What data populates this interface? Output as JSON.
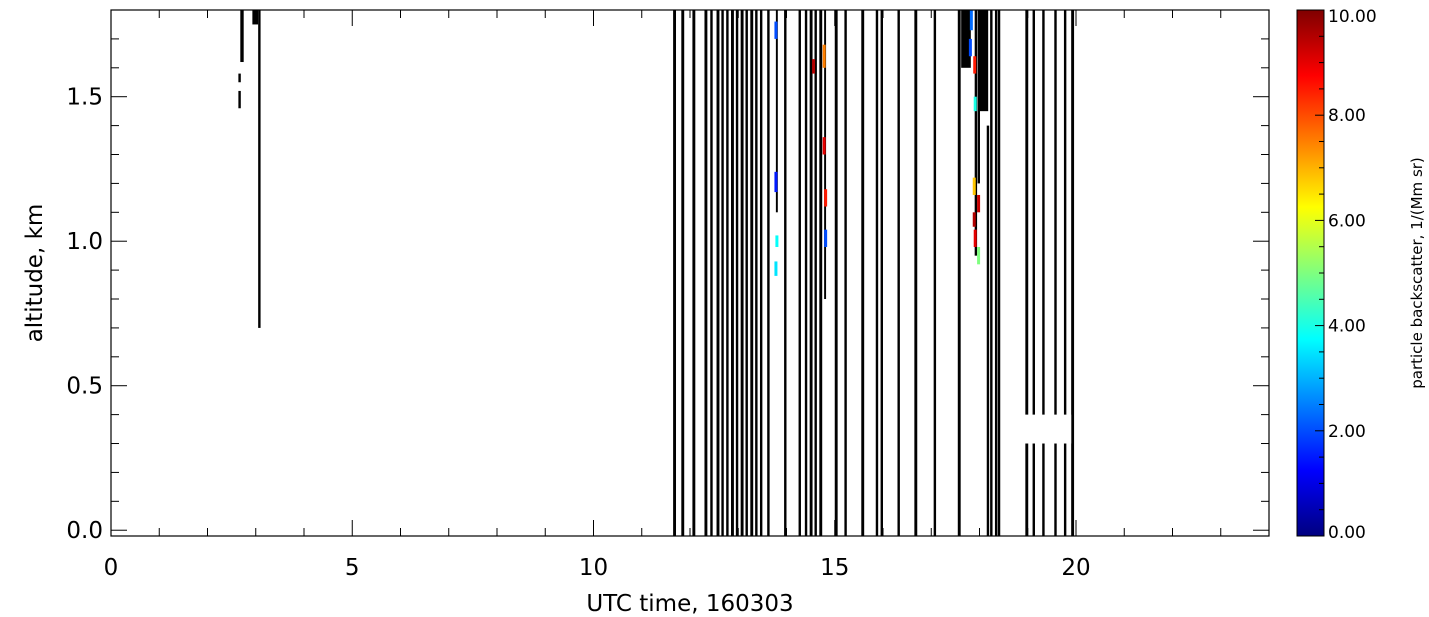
{
  "chart_data": {
    "type": "heatmap",
    "xlabel": "UTC time, 160303",
    "ylabel": "altitude, km",
    "xlim": [
      0,
      24
    ],
    "ylim": [
      -0.02,
      1.8
    ],
    "x_major_ticks": [
      0,
      5,
      10,
      15,
      20
    ],
    "x_tick_labels": [
      "0",
      "5",
      "10",
      "15",
      "20"
    ],
    "y_major_ticks": [
      0.0,
      0.5,
      1.0,
      1.5
    ],
    "y_tick_labels": [
      "0.0",
      "0.5",
      "1.0",
      "1.5"
    ],
    "grid": false,
    "colorbar": {
      "label": "particle backscatter, 1/(Mm sr)",
      "range": [
        0,
        10
      ],
      "ticks": [
        0,
        2,
        4,
        6,
        8,
        10
      ],
      "tick_labels": [
        "0.00",
        "2.00",
        "4.00",
        "6.00",
        "8.00",
        "10.00"
      ],
      "colormap": [
        "#00007f",
        "#0000ff",
        "#007fff",
        "#00ffff",
        "#7fff7f",
        "#ffff00",
        "#ff7f00",
        "#ff0000",
        "#7f0000"
      ]
    },
    "black_columns": [
      {
        "t": 2.64,
        "z0": 1.55,
        "z1": 1.58,
        "w": 0.05
      },
      {
        "t": 2.64,
        "z0": 1.46,
        "z1": 1.52,
        "w": 0.05
      },
      {
        "t": 2.68,
        "z0": 1.62,
        "z1": 1.8,
        "w": 0.07
      },
      {
        "t": 2.93,
        "z0": 1.75,
        "z1": 1.8,
        "w": 0.12
      },
      {
        "t": 3.05,
        "z0": 0.7,
        "z1": 1.8,
        "w": 0.05
      },
      {
        "t": 11.65,
        "z0": -0.02,
        "z1": 1.8,
        "w": 0.06
      },
      {
        "t": 11.82,
        "z0": -0.02,
        "z1": 1.8,
        "w": 0.06
      },
      {
        "t": 12.05,
        "z0": -0.02,
        "z1": 1.8,
        "w": 0.06
      },
      {
        "t": 12.3,
        "z0": -0.02,
        "z1": 1.8,
        "w": 0.06
      },
      {
        "t": 12.42,
        "z0": -0.02,
        "z1": 1.8,
        "w": 0.05
      },
      {
        "t": 12.55,
        "z0": -0.02,
        "z1": 1.8,
        "w": 0.06
      },
      {
        "t": 12.65,
        "z0": -0.02,
        "z1": 1.8,
        "w": 0.05
      },
      {
        "t": 12.75,
        "z0": -0.02,
        "z1": 1.8,
        "w": 0.05
      },
      {
        "t": 12.85,
        "z0": -0.02,
        "z1": 1.8,
        "w": 0.06
      },
      {
        "t": 12.95,
        "z0": -0.02,
        "z1": 1.8,
        "w": 0.05
      },
      {
        "t": 13.05,
        "z0": -0.02,
        "z1": 1.8,
        "w": 0.06
      },
      {
        "t": 13.15,
        "z0": -0.02,
        "z1": 1.8,
        "w": 0.05
      },
      {
        "t": 13.25,
        "z0": -0.02,
        "z1": 1.8,
        "w": 0.06
      },
      {
        "t": 13.35,
        "z0": -0.02,
        "z1": 1.8,
        "w": 0.05
      },
      {
        "t": 13.45,
        "z0": -0.02,
        "z1": 1.8,
        "w": 0.05
      },
      {
        "t": 13.6,
        "z0": -0.02,
        "z1": 1.8,
        "w": 0.05
      },
      {
        "t": 13.78,
        "z0": 1.1,
        "z1": 1.8,
        "w": 0.04
      },
      {
        "t": 13.95,
        "z0": -0.02,
        "z1": 1.8,
        "w": 0.05
      },
      {
        "t": 14.25,
        "z0": -0.02,
        "z1": 1.8,
        "w": 0.05
      },
      {
        "t": 14.38,
        "z0": -0.02,
        "z1": 1.8,
        "w": 0.05
      },
      {
        "t": 14.48,
        "z0": -0.02,
        "z1": 1.8,
        "w": 0.06
      },
      {
        "t": 14.58,
        "z0": -0.02,
        "z1": 1.8,
        "w": 0.05
      },
      {
        "t": 14.68,
        "z0": -0.02,
        "z1": 1.8,
        "w": 0.06
      },
      {
        "t": 14.78,
        "z0": 0.8,
        "z1": 1.8,
        "w": 0.04
      },
      {
        "t": 15.0,
        "z0": -0.02,
        "z1": 1.8,
        "w": 0.06
      },
      {
        "t": 15.2,
        "z0": -0.02,
        "z1": 1.8,
        "w": 0.05
      },
      {
        "t": 15.55,
        "z0": -0.02,
        "z1": 1.8,
        "w": 0.06
      },
      {
        "t": 15.85,
        "z0": -0.02,
        "z1": 1.8,
        "w": 0.05
      },
      {
        "t": 15.95,
        "z0": -0.02,
        "z1": 1.8,
        "w": 0.05
      },
      {
        "t": 16.3,
        "z0": -0.02,
        "z1": 1.8,
        "w": 0.05
      },
      {
        "t": 16.65,
        "z0": -0.02,
        "z1": 1.8,
        "w": 0.06
      },
      {
        "t": 17.05,
        "z0": -0.02,
        "z1": 1.8,
        "w": 0.05
      },
      {
        "t": 17.55,
        "z0": -0.02,
        "z1": 1.8,
        "w": 0.06
      },
      {
        "t": 17.62,
        "z0": 1.6,
        "z1": 1.8,
        "w": 0.2
      },
      {
        "t": 17.9,
        "z0": 0.95,
        "z1": 1.8,
        "w": 0.05
      },
      {
        "t": 17.96,
        "z0": 1.2,
        "z1": 1.8,
        "w": 0.05
      },
      {
        "t": 18.0,
        "z0": 1.45,
        "z1": 1.8,
        "w": 0.18
      },
      {
        "t": 18.15,
        "z0": -0.02,
        "z1": 1.4,
        "w": 0.05
      },
      {
        "t": 18.22,
        "z0": -0.02,
        "z1": 1.8,
        "w": 0.05
      },
      {
        "t": 18.32,
        "z0": -0.02,
        "z1": 1.8,
        "w": 0.05
      },
      {
        "t": 18.38,
        "z0": -0.02,
        "z1": 1.8,
        "w": 0.05
      },
      {
        "t": 18.95,
        "z0": -0.02,
        "z1": 1.8,
        "w": 0.06
      },
      {
        "t": 19.1,
        "z0": -0.02,
        "z1": 1.8,
        "w": 0.05
      },
      {
        "t": 19.3,
        "z0": -0.02,
        "z1": 1.8,
        "w": 0.05
      },
      {
        "t": 19.55,
        "z0": -0.02,
        "z1": 1.8,
        "w": 0.05
      },
      {
        "t": 19.75,
        "z0": -0.02,
        "z1": 1.8,
        "w": 0.05
      },
      {
        "t": 19.9,
        "z0": -0.02,
        "z1": 1.8,
        "w": 0.06
      }
    ],
    "colored_cells": [
      {
        "t": 13.75,
        "z0": 1.7,
        "z1": 1.76,
        "value": 2.0
      },
      {
        "t": 13.75,
        "z0": 1.17,
        "z1": 1.24,
        "value": 1.5
      },
      {
        "t": 13.77,
        "z0": 0.98,
        "z1": 1.02,
        "value": 3.8
      },
      {
        "t": 13.75,
        "z0": 0.88,
        "z1": 0.93,
        "value": 3.5
      },
      {
        "t": 14.53,
        "z0": 1.58,
        "z1": 1.63,
        "value": 9.5
      },
      {
        "t": 14.75,
        "z0": 1.6,
        "z1": 1.68,
        "value": 7.5
      },
      {
        "t": 14.75,
        "z0": 1.3,
        "z1": 1.36,
        "value": 9.0
      },
      {
        "t": 14.78,
        "z0": 1.12,
        "z1": 1.18,
        "value": 8.5
      },
      {
        "t": 14.78,
        "z0": 0.98,
        "z1": 1.04,
        "value": 2.0
      },
      {
        "t": 17.8,
        "z0": 1.73,
        "z1": 1.8,
        "value": 2.3
      },
      {
        "t": 17.78,
        "z0": 1.64,
        "z1": 1.7,
        "value": 2.0
      },
      {
        "t": 17.87,
        "z0": 1.58,
        "z1": 1.64,
        "value": 8.5
      },
      {
        "t": 17.88,
        "z0": 1.45,
        "z1": 1.5,
        "value": 4.0
      },
      {
        "t": 17.86,
        "z0": 1.16,
        "z1": 1.22,
        "value": 6.8
      },
      {
        "t": 17.86,
        "z0": 1.05,
        "z1": 1.1,
        "value": 9.5
      },
      {
        "t": 17.88,
        "z0": 0.98,
        "z1": 1.04,
        "value": 9.0
      },
      {
        "t": 17.95,
        "z0": 1.1,
        "z1": 1.16,
        "value": 9.3
      },
      {
        "t": 17.95,
        "z0": 0.92,
        "z1": 0.98,
        "value": 5.0
      }
    ],
    "white_boxes": [
      {
        "t0": 18.9,
        "t1": 19.9,
        "z0": 0.3,
        "z1": 0.4
      }
    ]
  }
}
